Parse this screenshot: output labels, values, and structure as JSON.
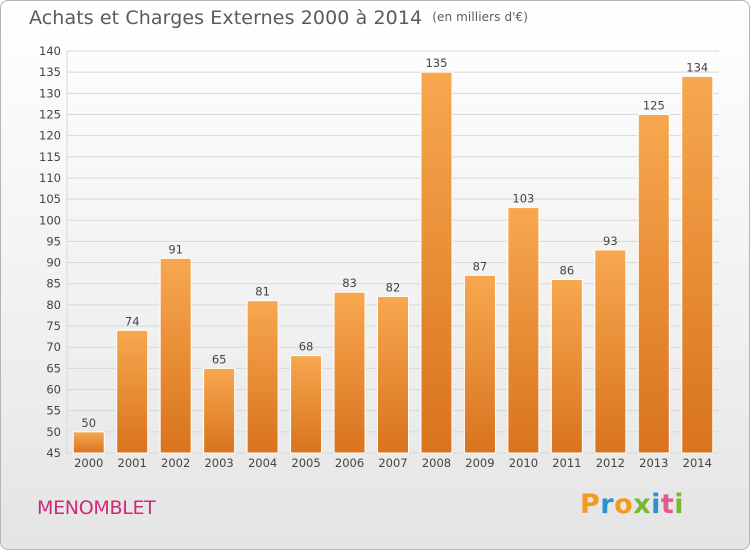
{
  "header": {
    "title": "Achats et Charges Externes 2000 à 2014",
    "unit": "(en milliers d'€)"
  },
  "place": "MENOMBLET",
  "logo": {
    "letters": [
      "P",
      "r",
      "o",
      "x",
      "i",
      "t",
      "i"
    ],
    "colors": [
      "#f39a1f",
      "#2f8fd0",
      "#f39a1f",
      "#7ab733",
      "#2f8fd0",
      "#e35a93",
      "#7ab733"
    ]
  },
  "colors": {
    "bar_top": "#f7a84f",
    "bar_bottom": "#d9731e",
    "bar_edge": "#ffffff",
    "grid": "#d8d8d8",
    "axis_text": "#444444"
  },
  "chart_data": {
    "type": "bar",
    "title": "Achats et Charges Externes 2000 à 2014",
    "subtitle": "(en milliers d'€)",
    "categories": [
      "2000",
      "2001",
      "2002",
      "2003",
      "2004",
      "2005",
      "2006",
      "2007",
      "2008",
      "2009",
      "2010",
      "2011",
      "2012",
      "2013",
      "2014"
    ],
    "values": [
      50,
      74,
      91,
      65,
      81,
      68,
      83,
      82,
      135,
      87,
      103,
      86,
      93,
      125,
      134
    ],
    "ylim": [
      45,
      140
    ],
    "yticks": [
      45,
      50,
      55,
      60,
      65,
      70,
      75,
      80,
      85,
      90,
      95,
      100,
      105,
      110,
      115,
      120,
      125,
      130,
      135,
      140
    ],
    "grid": true,
    "xlabel": "",
    "ylabel": ""
  }
}
